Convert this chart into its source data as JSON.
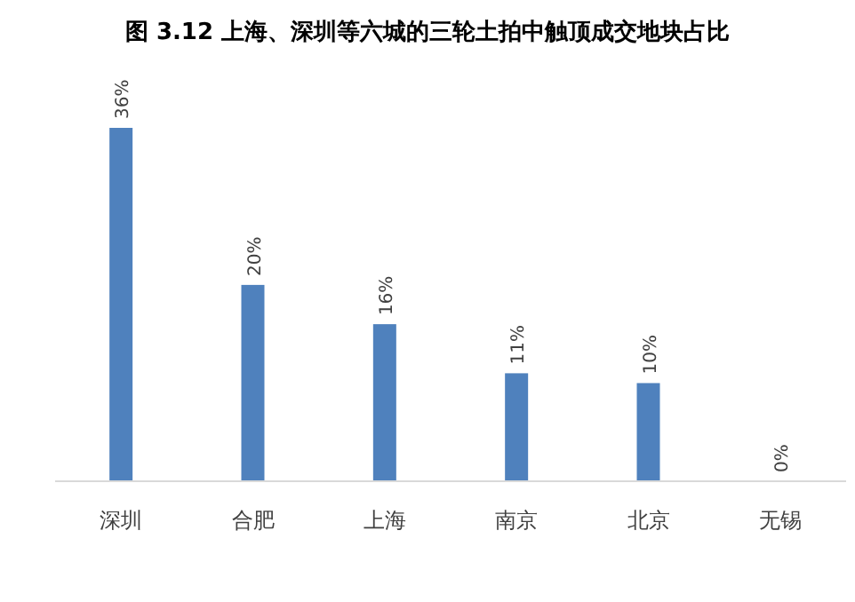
{
  "chart_data": {
    "type": "bar",
    "title": "图 3.12  上海、深圳等六城的三轮土拍中触顶成交地块占比",
    "categories": [
      "深圳",
      "合肥",
      "上海",
      "南京",
      "北京",
      "无锡"
    ],
    "values": [
      36,
      20,
      16,
      11,
      10,
      0
    ],
    "value_labels": [
      "36%",
      "20%",
      "16%",
      "11%",
      "10%",
      "0%"
    ],
    "color": "#4f81bd"
  }
}
